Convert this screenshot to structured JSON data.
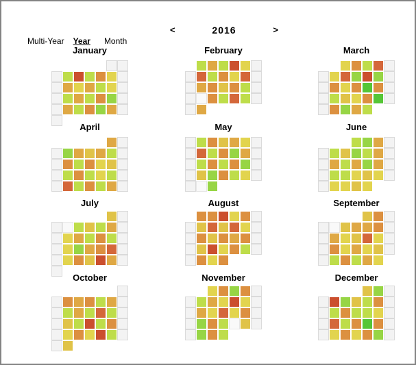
{
  "window": {
    "background": "#ffffff",
    "border_color": "#838383"
  },
  "year_nav": {
    "prev": "<",
    "year": "2016",
    "next": ">"
  },
  "view_tabs": {
    "items": [
      {
        "label": "Multi-Year",
        "active": false
      },
      {
        "label": "Year",
        "active": true
      },
      {
        "label": "Month",
        "active": false
      }
    ]
  },
  "chart_data": {
    "type": "heatmap",
    "subtype": "calendar-year-heatmap",
    "title": "2016",
    "legend_position": "none",
    "grid": "7 columns per week row, weekends shown as gray empty cells",
    "palette": {
      "B": "#55c636",
      "G": "#97d545",
      "g": "#bedd4a",
      "y": "#e2d44e",
      "d": "#e0c348",
      "t": "#dfa844",
      "o": "#dc9040",
      "O": "#d4673a",
      "r": "#cb4f2e"
    },
    "cell_styles": {
      "empty_bg": "#f3f3f3",
      "empty_border": "#dadada",
      "blank_bg": "#f9f9f9"
    },
    "months": [
      {
        "name": "January",
        "rows": [
          ".....ee",
          "egrgoye",
          "etytgye",
          "egtgoGe",
          "etgoGte",
          "e......"
        ]
      },
      {
        "name": "February",
        "rows": [
          ".gtgrye",
          "eOgoyOe",
          "etodoge",
          "ewogOge",
          "et....."
        ]
      },
      {
        "name": "March",
        "rows": [
          "..yogOe",
          "eyOGrGe",
          "eoyoBoe",
          "egdyoBe",
          "eoGtg.."
        ]
      },
      {
        "name": "April",
        "rows": [
          ".....te",
          "eGtdtge",
          "eogoyde",
          "egogyge",
          "eOgogte"
        ]
      },
      {
        "name": "May",
        "rows": [
          "egodtye",
          "eOgoGte",
          "egogoGe",
          "edGogye",
          "ewG...."
        ]
      },
      {
        "name": "June",
        "rows": [
          "...gGte",
          "egdGgte",
          "etgtGte",
          "eggydye",
          "eyydy.."
        ]
      },
      {
        "name": "July",
        "rows": [
          ".....de",
          "ewgdgte",
          "eytgoge",
          "eyGtoOe",
          "eyodrte",
          "e......"
        ]
      },
      {
        "name": "August",
        "rows": [
          ".ooryoe",
          "edOdOye",
          "eodotoe",
          "edryoge",
          "eoyo..."
        ]
      },
      {
        "name": "September",
        "rows": [
          "....doe",
          "ewdttoe",
          "etydOye",
          "eoytyde",
          "egogty."
        ]
      },
      {
        "name": "October",
        "rows": [
          "......e",
          "eotogte",
          "egtgOge",
          "edgrgoe",
          "eyoyrge",
          "ed....."
        ]
      },
      {
        "name": "November",
        "rows": [
          "..yoGoe",
          "egtyrye",
          "etyOyoe",
          "eGogwde",
          "eGog..."
        ]
      },
      {
        "name": "December",
        "rows": [
          "....dGe",
          "erGdgoe",
          "egoggye",
          "eOgoBoe",
          "eyoyoGe"
        ]
      }
    ]
  }
}
